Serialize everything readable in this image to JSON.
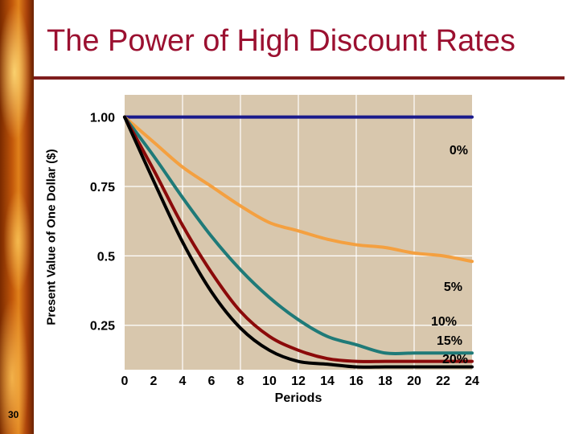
{
  "slide": {
    "title": "The Power of High Discount Rates",
    "page_number": "30"
  },
  "colors": {
    "title": "#9b1030",
    "plot_background": "#d8c7ad",
    "grid": "#ffffff"
  },
  "chart_data": {
    "type": "line",
    "title": "The Power of High Discount Rates",
    "xlabel": "Periods",
    "ylabel": "Present Value of One Dollar ($)",
    "x_ticks": [
      "0",
      "2",
      "4",
      "6",
      "8",
      "10",
      "12",
      "14",
      "16",
      "18",
      "20",
      "22",
      "24"
    ],
    "y_ticks": [
      "0.25",
      "0.5",
      "0.75",
      "1.00"
    ],
    "xlim": [
      0,
      24
    ],
    "ylim": [
      0.09,
      1.08
    ],
    "grid": true,
    "series": [
      {
        "name": "0%",
        "color": "#1a1a8c",
        "x": [
          0,
          24
        ],
        "y": [
          1.0,
          1.0
        ]
      },
      {
        "name": "5%",
        "color": "#f4a040",
        "x": [
          0,
          2,
          4,
          6,
          8,
          10,
          12,
          14,
          16,
          18,
          20,
          22,
          24
        ],
        "y": [
          1.0,
          0.91,
          0.82,
          0.75,
          0.68,
          0.62,
          0.59,
          0.56,
          0.54,
          0.53,
          0.51,
          0.5,
          0.48
        ]
      },
      {
        "name": "10%",
        "color": "#1f7a78",
        "x": [
          0,
          2,
          4,
          6,
          8,
          10,
          12,
          14,
          16,
          18,
          20,
          22,
          24
        ],
        "y": [
          1.0,
          0.86,
          0.71,
          0.57,
          0.45,
          0.35,
          0.27,
          0.21,
          0.18,
          0.15,
          0.15,
          0.15,
          0.15
        ]
      },
      {
        "name": "15%",
        "color": "#8b0a0a",
        "x": [
          0,
          2,
          4,
          6,
          8,
          10,
          12,
          14,
          16,
          18,
          20,
          22,
          24
        ],
        "y": [
          1.0,
          0.81,
          0.61,
          0.44,
          0.3,
          0.21,
          0.16,
          0.13,
          0.12,
          0.12,
          0.12,
          0.12,
          0.12
        ]
      },
      {
        "name": "20%",
        "color": "#000000",
        "x": [
          0,
          2,
          4,
          6,
          8,
          10,
          12,
          14,
          16,
          18,
          20,
          22,
          24
        ],
        "y": [
          1.0,
          0.77,
          0.55,
          0.37,
          0.24,
          0.16,
          0.12,
          0.11,
          0.1,
          0.1,
          0.1,
          0.1,
          0.1
        ]
      }
    ]
  }
}
